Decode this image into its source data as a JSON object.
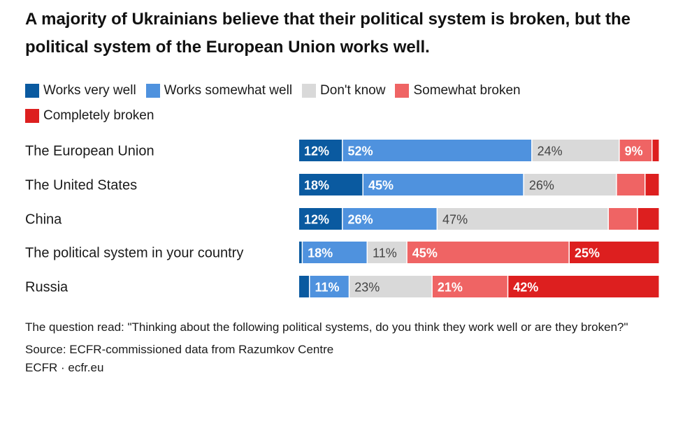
{
  "title": "A majority of Ukrainians believe that their political system is broken, but the political system of the European Union works well.",
  "colors": {
    "works_very_well": "#0a5aa0",
    "works_somewhat_well": "#4f92de",
    "dont_know": "#d9d9d9",
    "somewhat_broken": "#ef6464",
    "completely_broken": "#dd1f1f"
  },
  "legend": [
    {
      "label": "Works very well",
      "color": "#0a5aa0"
    },
    {
      "label": "Works somewhat well",
      "color": "#4f92de"
    },
    {
      "label": "Don't know",
      "color": "#d9d9d9"
    },
    {
      "label": "Somewhat broken",
      "color": "#ef6464"
    },
    {
      "label": "Completely broken",
      "color": "#dd1f1f"
    }
  ],
  "chart_data": {
    "type": "bar",
    "orientation": "horizontal",
    "stacked": true,
    "percent_scale": [
      0,
      100
    ],
    "categories": [
      "The European Union",
      "The United States",
      "China",
      "The political system in your country",
      "Russia"
    ],
    "series": [
      {
        "name": "Works very well",
        "values": [
          12,
          18,
          12,
          1,
          3
        ],
        "labels": [
          "12%",
          "18%",
          "12%",
          "",
          ""
        ]
      },
      {
        "name": "Works somewhat well",
        "values": [
          52,
          45,
          26,
          18,
          11
        ],
        "labels": [
          "52%",
          "45%",
          "26%",
          "18%",
          "11%"
        ]
      },
      {
        "name": "Don't know",
        "values": [
          24,
          26,
          47,
          11,
          23
        ],
        "labels": [
          "24%",
          "26%",
          "47%",
          "11%",
          "23%"
        ]
      },
      {
        "name": "Somewhat broken",
        "values": [
          9,
          8,
          8,
          45,
          21
        ],
        "labels": [
          "9%",
          "",
          "",
          "45%",
          "21%"
        ]
      },
      {
        "name": "Completely broken",
        "values": [
          2,
          4,
          6,
          25,
          42
        ],
        "labels": [
          "",
          "",
          "",
          "25%",
          "42%"
        ]
      }
    ]
  },
  "footnote": {
    "question": "The question read: \"Thinking about the following political systems, do you think they work well or are they broken?\"",
    "source": "Source: ECFR-commissioned data from Razumkov Centre",
    "credit": "ECFR · ecfr.eu"
  }
}
